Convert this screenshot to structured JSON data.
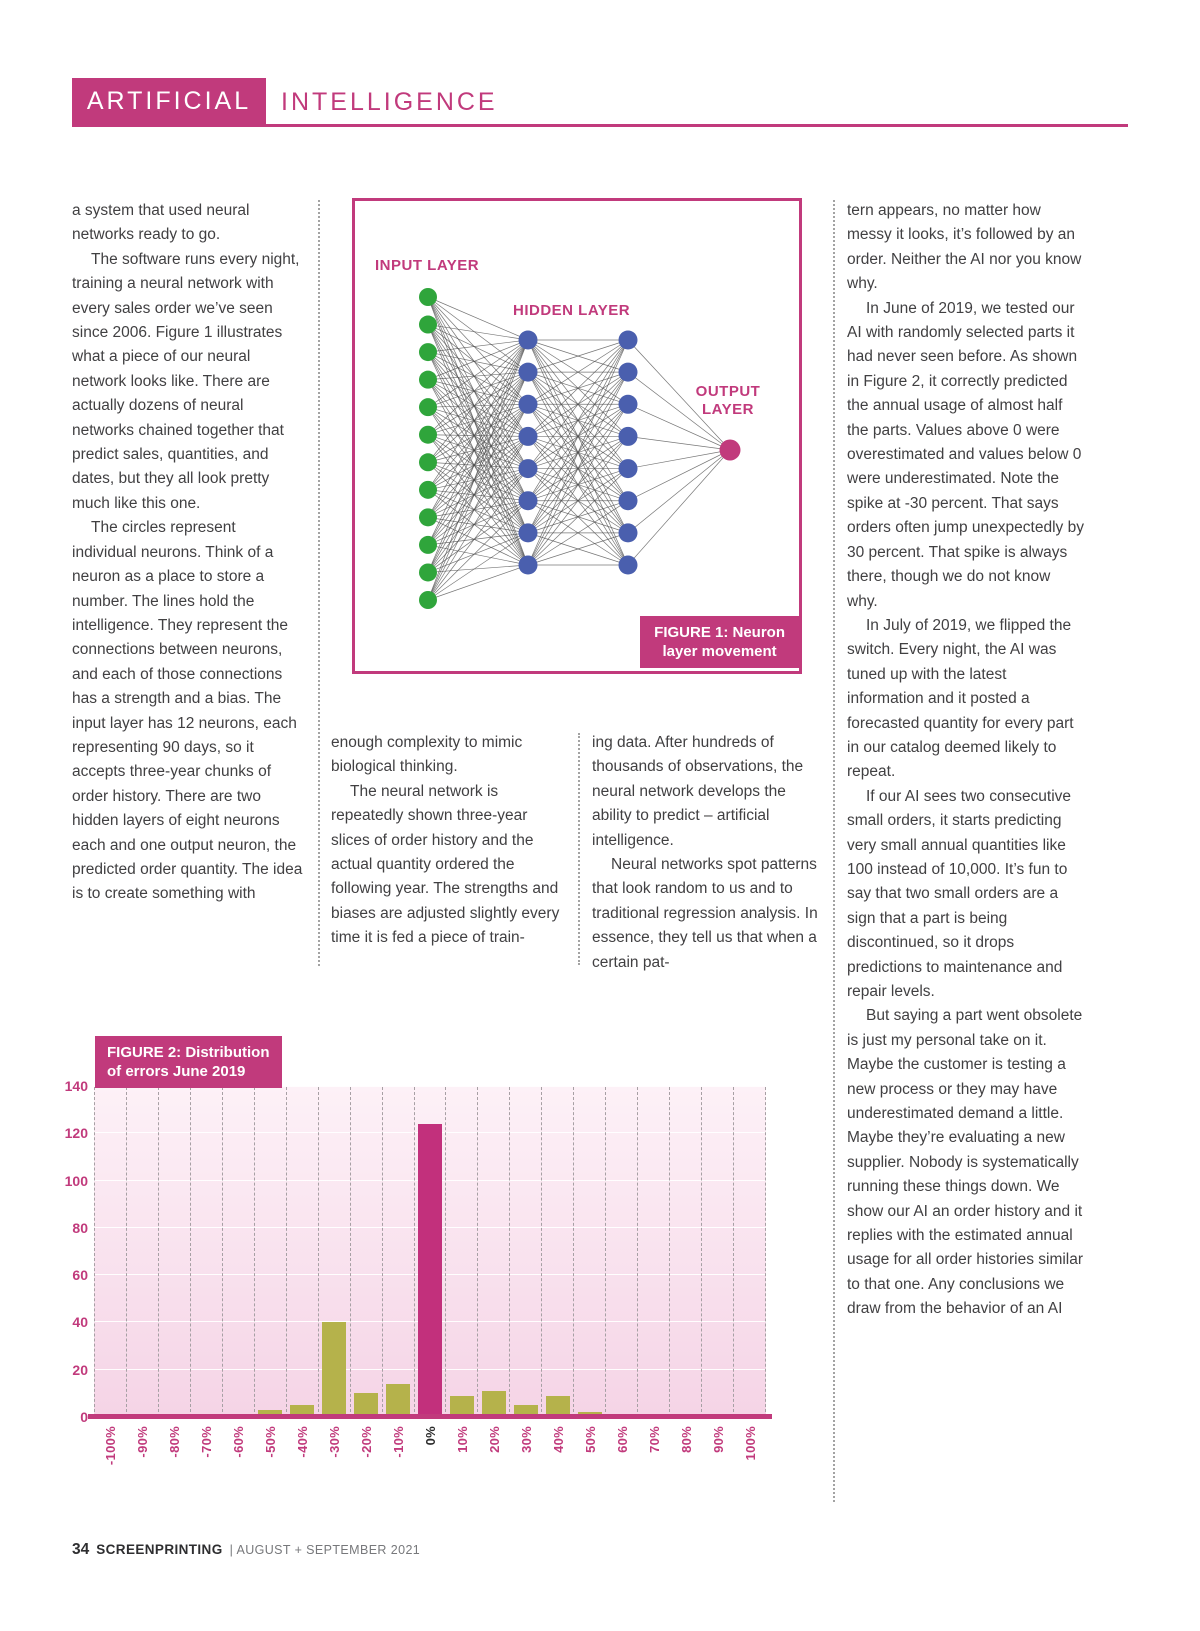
{
  "header": {
    "word1": "ARTIFICIAL",
    "word2": "INTELLIGENCE"
  },
  "columns": {
    "col1": [
      "a system that used neural networks ready to go.",
      "The software runs every night, training a neural network with every sales order we’ve seen since 2006. Figure 1 illustrates what a piece of our neural network looks like. There are actually dozens of neural networks chained together that predict sales, quantities, and dates, but they all look pretty much like this one.",
      "The circles represent individual neurons. Think of a neuron as a place to store a number. The lines hold the intelligence. They represent the connections between neurons, and each of those connections has a strength and a bias. The input layer has 12 neurons, each representing 90 days, so it accepts three-year chunks of order history. There are two hidden layers of eight neurons each and one output neuron, the predicted order quantity. The idea is to create something with"
    ],
    "col2": [
      "enough complexity to mimic biological thinking.",
      "The neural network is repeatedly shown three-year slices of order history and the actual quantity ordered the following year. The strengths and biases are adjusted slightly every time it is fed a piece of train-"
    ],
    "col3": [
      "ing data. After hundreds of thousands of observations, the neural network develops the ability to predict – artificial intelligence.",
      "Neural networks spot patterns that look random to us and to traditional regression analysis. In essence, they tell us that when a certain pat-"
    ],
    "col4": [
      "tern appears, no matter how messy it looks, it’s followed by an order. Neither the AI nor you know why.",
      "In June of 2019, we tested our AI with randomly selected parts it had never seen before. As shown in Figure 2, it correctly predicted the annual usage of almost half the parts. Values above 0 were overestimated and values below 0 were underestimated. Note the spike at -30 percent. That says orders often jump unexpectedly by 30 percent. That spike is always there, though we do not know why.",
      "In July of 2019, we flipped the switch. Every night, the AI was tuned up with the latest information and it posted a forecasted quantity for every part in our catalog deemed likely to repeat.",
      "If our AI sees two consecutive small orders, it starts predicting very small annual quantities like 100 instead of 10,000. It’s fun to say that two small orders are a sign that a part is being discontinued, so it drops predictions to maintenance and repair levels.",
      "But saying a part went obsolete is just my personal take on it. Maybe the customer is testing a new process or they may have underestimated demand a little. Maybe they’re evaluating a new supplier. Nobody is systematically running these things down. We show our AI an order history and it replies with the estimated annual usage for all order histories similar to that one. Any conclusions we draw from the behavior of an AI"
    ]
  },
  "figure1": {
    "input_label": "INPUT LAYER",
    "hidden_label": "HIDDEN LAYER",
    "output_label_line1": "OUTPUT",
    "output_label_line2": "LAYER",
    "caption_line1": "FIGURE 1: Neuron",
    "caption_line2": "layer  movement",
    "layers": {
      "input_neurons": 12,
      "hidden_layer1_neurons": 8,
      "hidden_layer2_neurons": 8,
      "output_neurons": 1
    },
    "colors": {
      "input": "#2fa53b",
      "hidden": "#4a5fae",
      "output": "#c13a7c",
      "line": "#4a4a4a"
    }
  },
  "chart_data": {
    "type": "bar",
    "title": "FIGURE 2: Distribution of errors June 2019",
    "title_line1": "FIGURE 2: Distribution",
    "title_line2": "of errors June 2019",
    "categories": [
      "-100%",
      "-90%",
      "-80%",
      "-70%",
      "-60%",
      "-50%",
      "-40%",
      "-30%",
      "-20%",
      "-10%",
      "0%",
      "10%",
      "20%",
      "30%",
      "40%",
      "50%",
      "60%",
      "70%",
      "80%",
      "90%",
      "100%"
    ],
    "values": [
      0,
      0,
      0,
      0,
      0,
      3,
      5,
      40,
      10,
      14,
      124,
      9,
      11,
      5,
      9,
      2,
      1,
      0,
      0,
      0,
      0
    ],
    "xlabel": "",
    "ylabel": "",
    "ylim": [
      0,
      140
    ],
    "yticks": [
      0,
      20,
      40,
      60,
      80,
      100,
      120,
      140
    ],
    "grid": "on",
    "legend": "none",
    "bar_color": "#b5b24b",
    "highlight_category": "0%",
    "highlight_color": "#c2307c"
  },
  "footer": {
    "page_number": "34",
    "magazine": "SCREENPRINTING",
    "issue": "| AUGUST + SEPTEMBER 2021"
  }
}
